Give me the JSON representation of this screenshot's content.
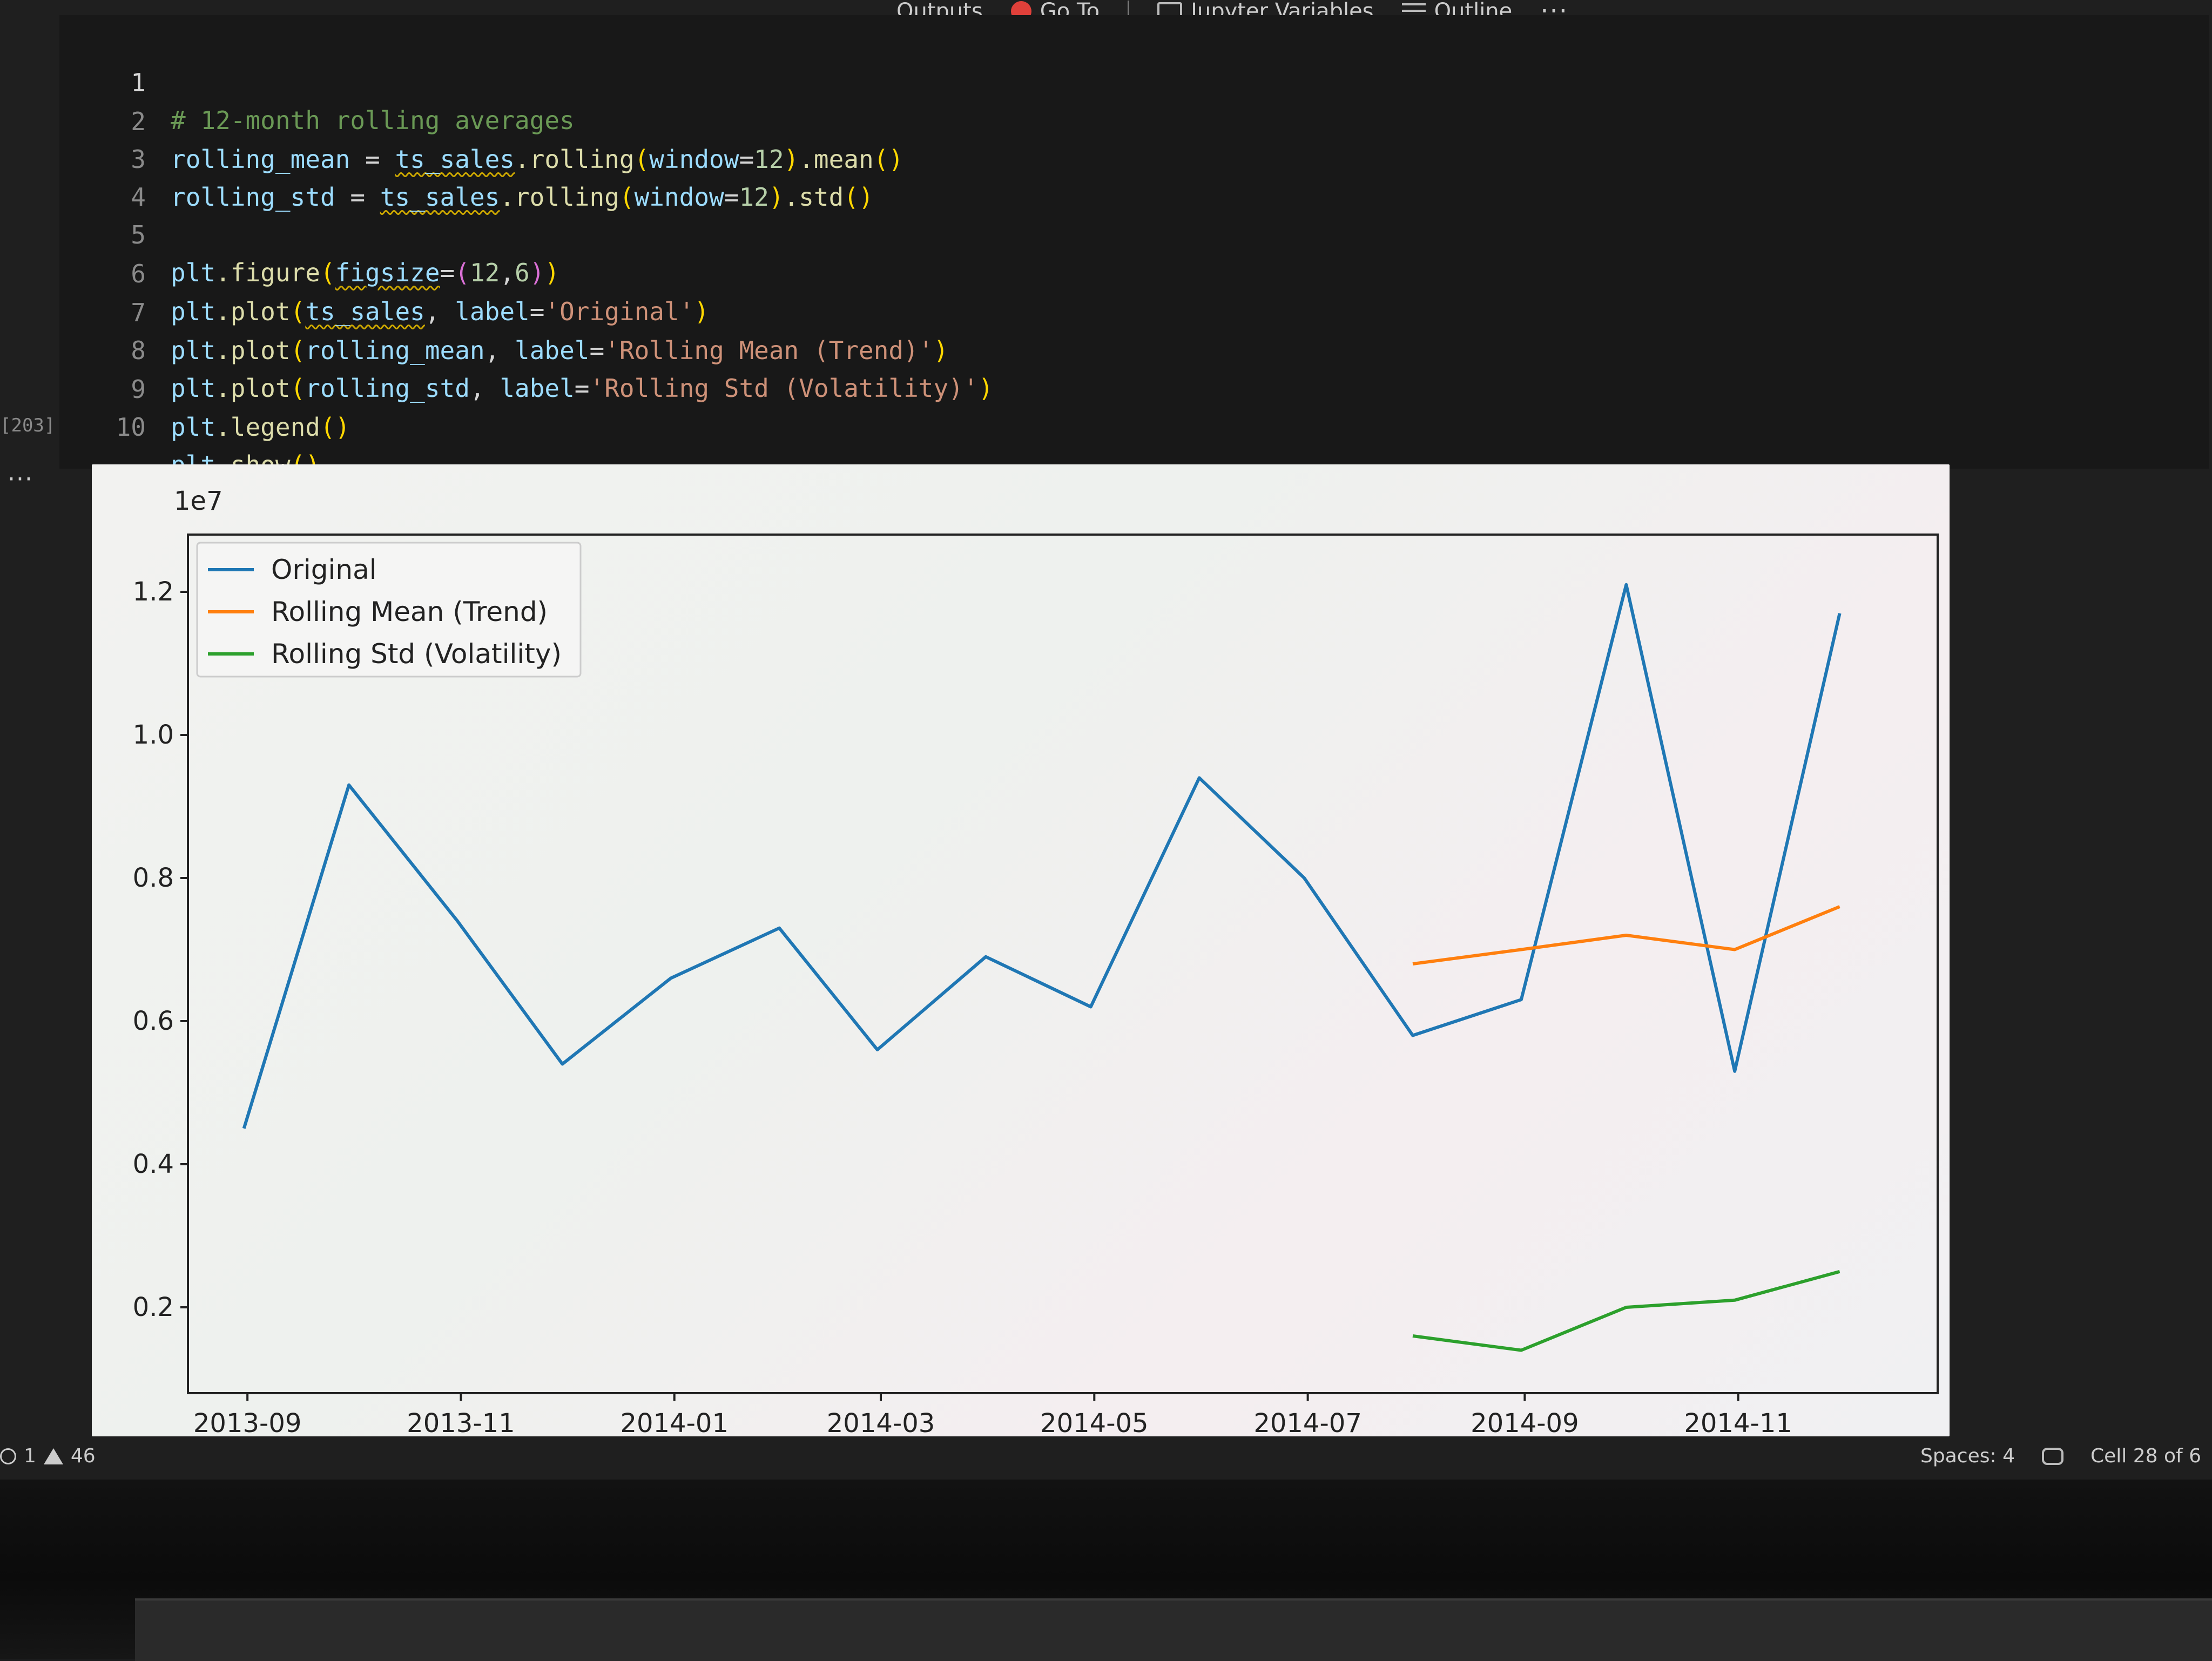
{
  "toolbar": {
    "outputs_partial": "Outputs",
    "goto_partial": "Go To",
    "jupyter_variables": "Jupyter Variables",
    "outline": "Outline",
    "more": "···"
  },
  "editor": {
    "lines": [
      {
        "num": "1",
        "text": "# 12-month rolling averages"
      },
      {
        "num": "2",
        "text": "rolling_mean = ts_sales.rolling(window=12).mean()"
      },
      {
        "num": "3",
        "text": "rolling_std = ts_sales.rolling(window=12).std()"
      },
      {
        "num": "4",
        "text": ""
      },
      {
        "num": "5",
        "text": "plt.figure(figsize=(12,6))"
      },
      {
        "num": "6",
        "text": "plt.plot(ts_sales, label='Original')"
      },
      {
        "num": "7",
        "text": "plt.plot(rolling_mean, label='Rolling Mean (Trend)')"
      },
      {
        "num": "8",
        "text": "plt.plot(rolling_std, label='Rolling Std (Volatility)')"
      },
      {
        "num": "9",
        "text": "plt.legend()"
      },
      {
        "num": "10",
        "text": "plt.show()"
      }
    ],
    "tokens": {
      "l1_comment": "# 12-month rolling averages",
      "rolling_mean": "rolling_mean",
      "rolling_std": "rolling_std",
      "eq": " = ",
      "ts_sales": "ts_sales",
      "dot_rolling": ".rolling",
      "window": "window",
      "eq_nospace": "=",
      "twelve": "12",
      "dot_mean": ".mean",
      "dot_std": ".std",
      "plt": "plt",
      "dot_figure": ".figure",
      "figsize": "figsize",
      "six": "6",
      "comma": ",",
      "comma_space": ", ",
      "dot_plot": ".plot",
      "label": "label",
      "str_original": "'Original'",
      "str_mean": "'Rolling Mean (Trend)'",
      "str_std": "'Rolling Std (Volatility)'",
      "dot_legend": ".legend",
      "dot_show": ".show",
      "lp": "(",
      "rp": ")",
      "empty_call": "()"
    },
    "execution_count": "[203]"
  },
  "output": {
    "more_label": "···"
  },
  "chart_data": {
    "type": "line",
    "scale_label": "1e7",
    "ylim": [
      0.08,
      1.28
    ],
    "y_ticks": [
      0.2,
      0.4,
      0.6,
      0.8,
      1.0,
      1.2
    ],
    "y_tick_labels": [
      "0.2",
      "0.4",
      "0.6",
      "0.8",
      "1.0",
      "1.2"
    ],
    "x_range": [
      "2013-08-15",
      "2014-12-28"
    ],
    "x_ticks": [
      "2013-09-01",
      "2013-11-01",
      "2014-01-01",
      "2014-03-01",
      "2014-05-01",
      "2014-07-01",
      "2014-09-01",
      "2014-11-01"
    ],
    "x_tick_labels": [
      "2013-09",
      "2013-11",
      "2014-01",
      "2014-03",
      "2014-05",
      "2014-07",
      "2014-09",
      "2014-11"
    ],
    "legend_position": "top-left",
    "grid": false,
    "series": [
      {
        "name": "Original",
        "color": "#1f77b4",
        "x": [
          "2013-08-31",
          "2013-09-30",
          "2013-10-31",
          "2013-11-30",
          "2013-12-31",
          "2014-01-31",
          "2014-02-28",
          "2014-03-31",
          "2014-04-30",
          "2014-05-31",
          "2014-06-30",
          "2014-07-31",
          "2014-08-31",
          "2014-09-30",
          "2014-10-31",
          "2014-11-30",
          "2014-12-31"
        ],
        "values": [
          0.45,
          0.93,
          0.74,
          0.54,
          0.66,
          0.73,
          0.56,
          0.69,
          0.62,
          0.94,
          0.8,
          0.58,
          0.63,
          1.21,
          0.53,
          1.17,
          null
        ]
      },
      {
        "name": "Rolling Mean (Trend)",
        "color": "#ff7f0e",
        "x": [
          "2014-07-31",
          "2014-08-31",
          "2014-09-30",
          "2014-10-31",
          "2014-11-30"
        ],
        "values": [
          0.68,
          0.7,
          0.72,
          0.7,
          0.76
        ]
      },
      {
        "name": "Rolling Std (Volatility)",
        "color": "#2ca02c",
        "x": [
          "2014-07-31",
          "2014-08-31",
          "2014-09-30",
          "2014-10-31",
          "2014-11-30"
        ],
        "values": [
          0.16,
          0.14,
          0.2,
          0.21,
          0.25
        ]
      }
    ]
  },
  "statusbar": {
    "errors": "1",
    "warnings": "46",
    "spaces": "Spaces: 4",
    "cell": "Cell 28 of 6"
  }
}
